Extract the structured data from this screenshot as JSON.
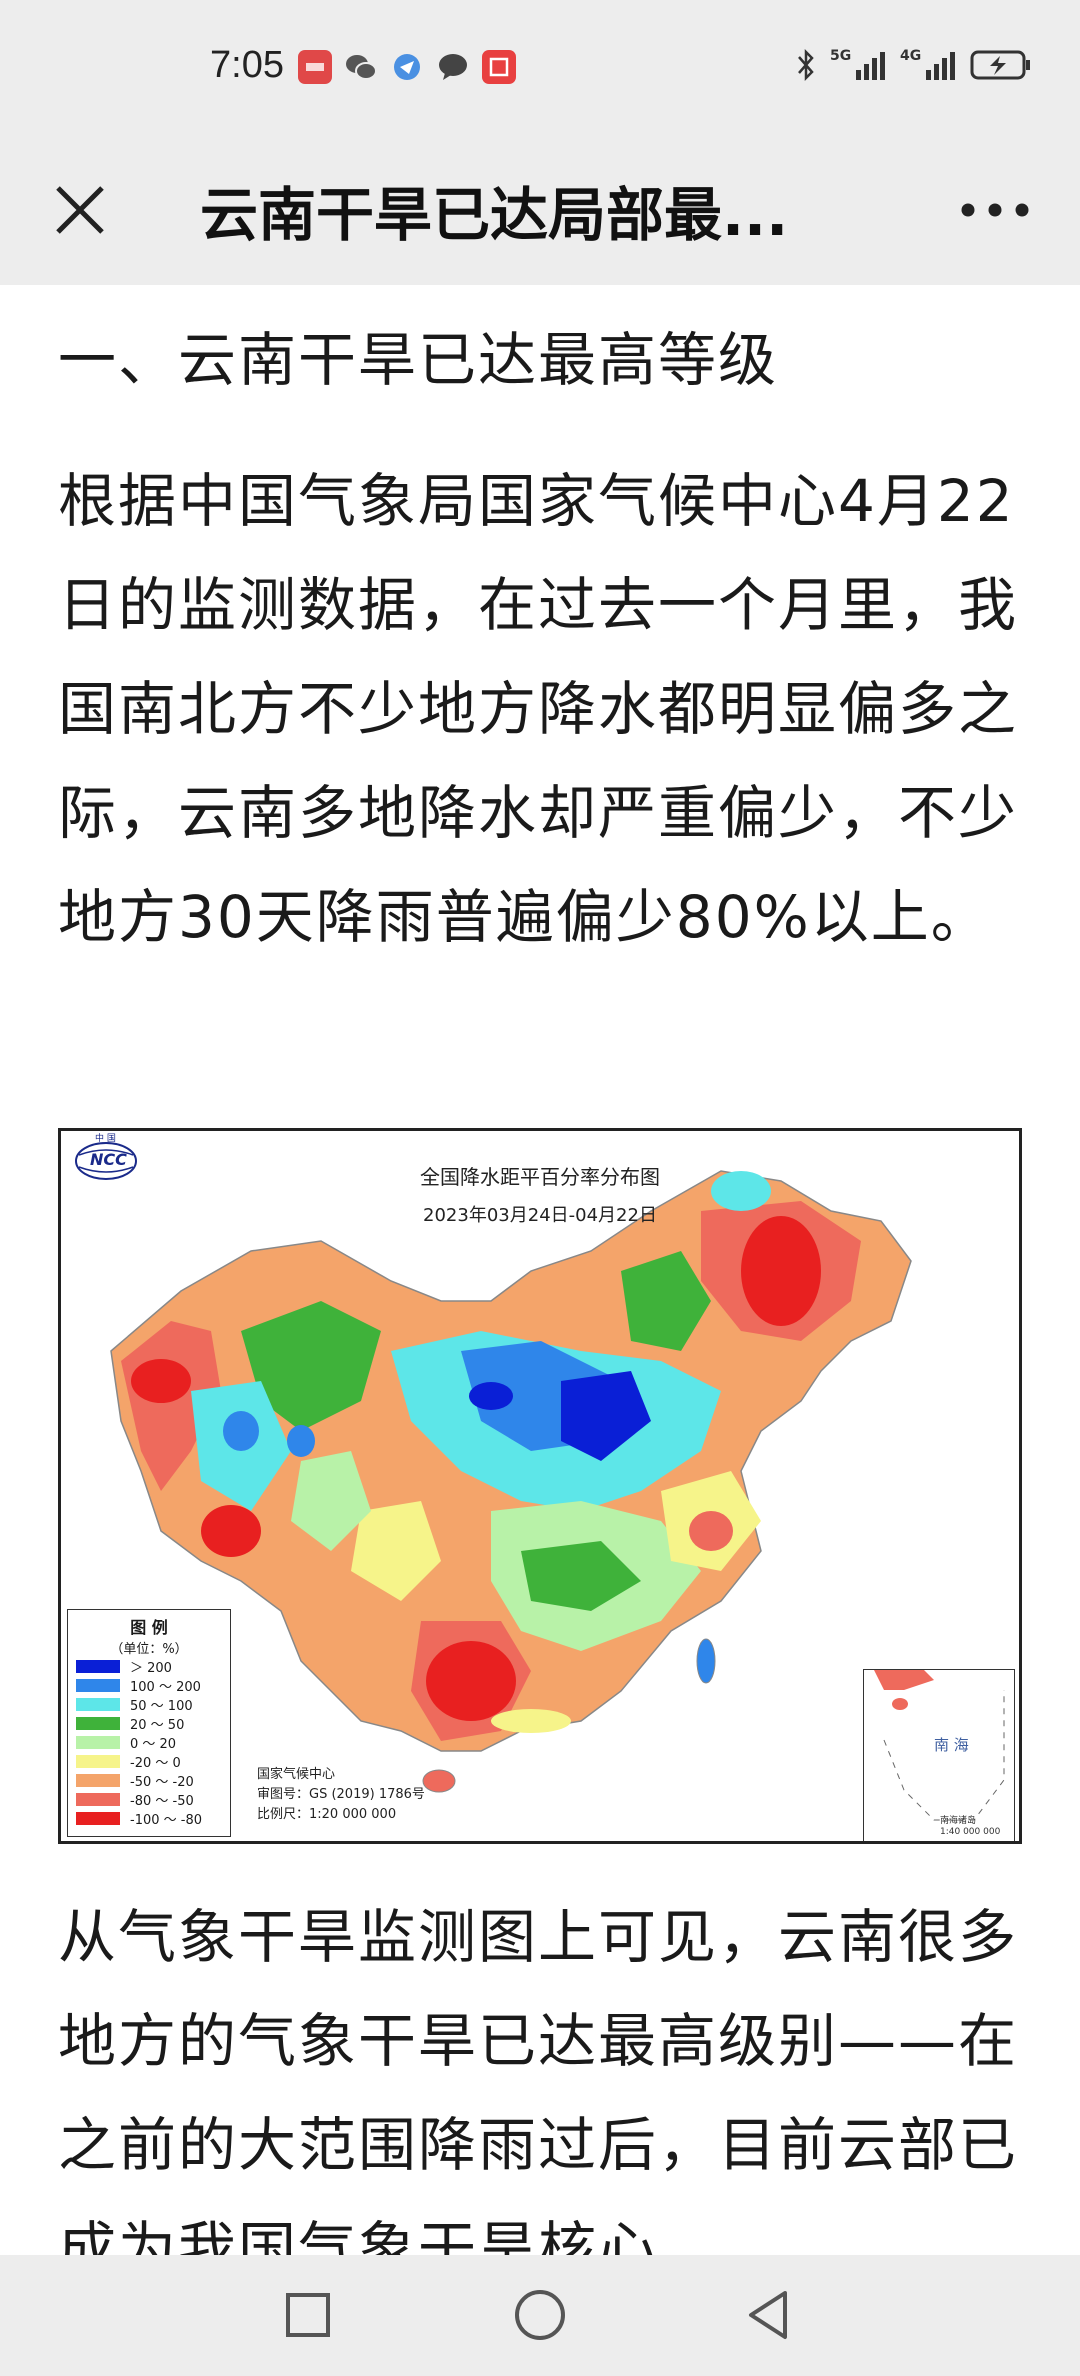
{
  "status": {
    "time": "7:05",
    "network_1": "5G",
    "network_2": "4G"
  },
  "nav": {
    "title": "云南干旱已达局部最..."
  },
  "article": {
    "heading": "一、云南干旱已达最高等级",
    "paragraph_1": "根据中国气象局国家气候中心4月22日的监测数据，在过去一个月里，我国南北方不少地方降水都明显偏多之际，云南多地降水却严重偏少，不少地方30天降雨普遍偏少80%以上。",
    "paragraph_2": "从气象干旱监测图上可见，云南很多地方的气象干旱已达最高级别——在之前的大范围降雨过后，目前云部已成为我国气象干旱核心"
  },
  "map": {
    "logo_text": "NCC",
    "logo_top": "中 国",
    "title": "全国降水距平百分率分布图",
    "date_range": "2023年03月24日-04月22日",
    "legend_title": "图 例",
    "legend_unit": "（单位：%）",
    "legend": [
      {
        "label": "＞ 200",
        "color": "#0a1fd6"
      },
      {
        "label": "100 ～ 200",
        "color": "#2f86ea"
      },
      {
        "label": "50 ～ 100",
        "color": "#5de6e8"
      },
      {
        "label": "20 ～ 50",
        "color": "#3fb23a"
      },
      {
        "label": "0 ～ 20",
        "color": "#b8f2a8"
      },
      {
        "label": "-20 ～ 0",
        "color": "#f6f48a"
      },
      {
        "label": "-50 ～ -20",
        "color": "#f4a46a"
      },
      {
        "label": "-80 ～ -50",
        "color": "#ee6a5c"
      },
      {
        "label": "-100 ～ -80",
        "color": "#e82020"
      }
    ],
    "credit_org": "国家气候中心",
    "credit_review": "审图号：GS (2019) 1786号",
    "credit_scale": "比例尺：1:20 000 000",
    "inset_label": "南 海",
    "inset_note_1": "南海诸岛",
    "inset_note_2": "1:40 000 000"
  }
}
